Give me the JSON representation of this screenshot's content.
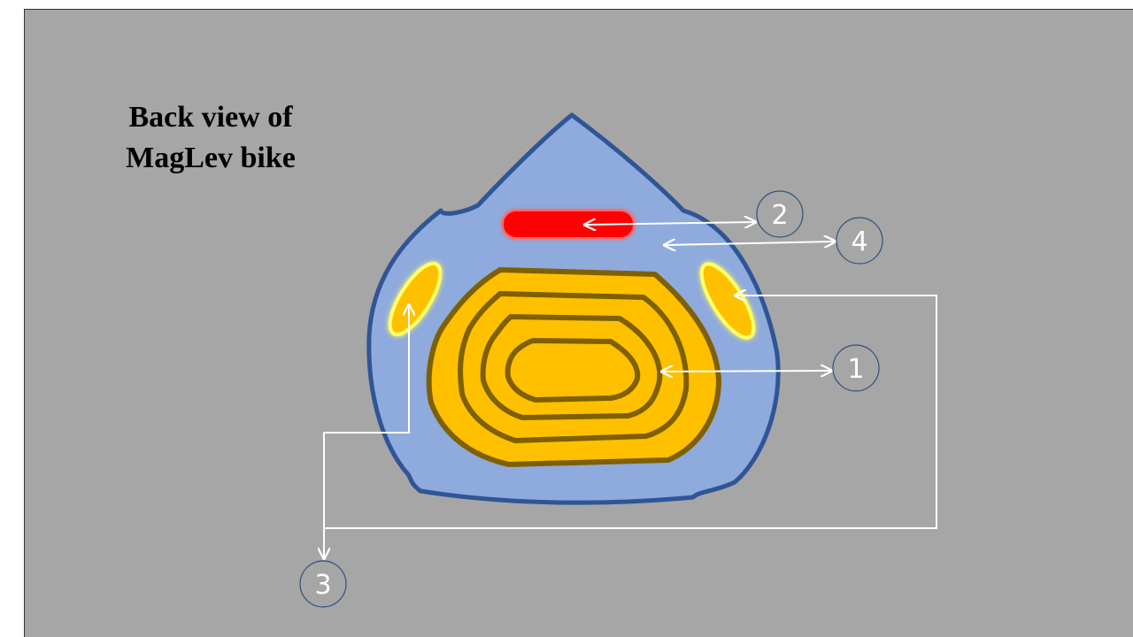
{
  "title_lines": [
    "Back view of",
    "MagLev bike"
  ],
  "callouts": [
    {
      "id": "1",
      "label": "1"
    },
    {
      "id": "2",
      "label": "2"
    },
    {
      "id": "3",
      "label": "3"
    },
    {
      "id": "4",
      "label": "4"
    }
  ],
  "colors": {
    "slide_background": "#a6a6a6",
    "body_fill": "#8faadc",
    "body_outline": "#2f5597",
    "coil_fill": "#ffc000",
    "coil_outline": "#7f6000",
    "light_bar": "#ff0000",
    "side_lights": "#ffc000",
    "side_light_glow": "#ffff66",
    "callout_lines": "#ffffff",
    "callout_circle_outline": "#2f4f7f"
  }
}
